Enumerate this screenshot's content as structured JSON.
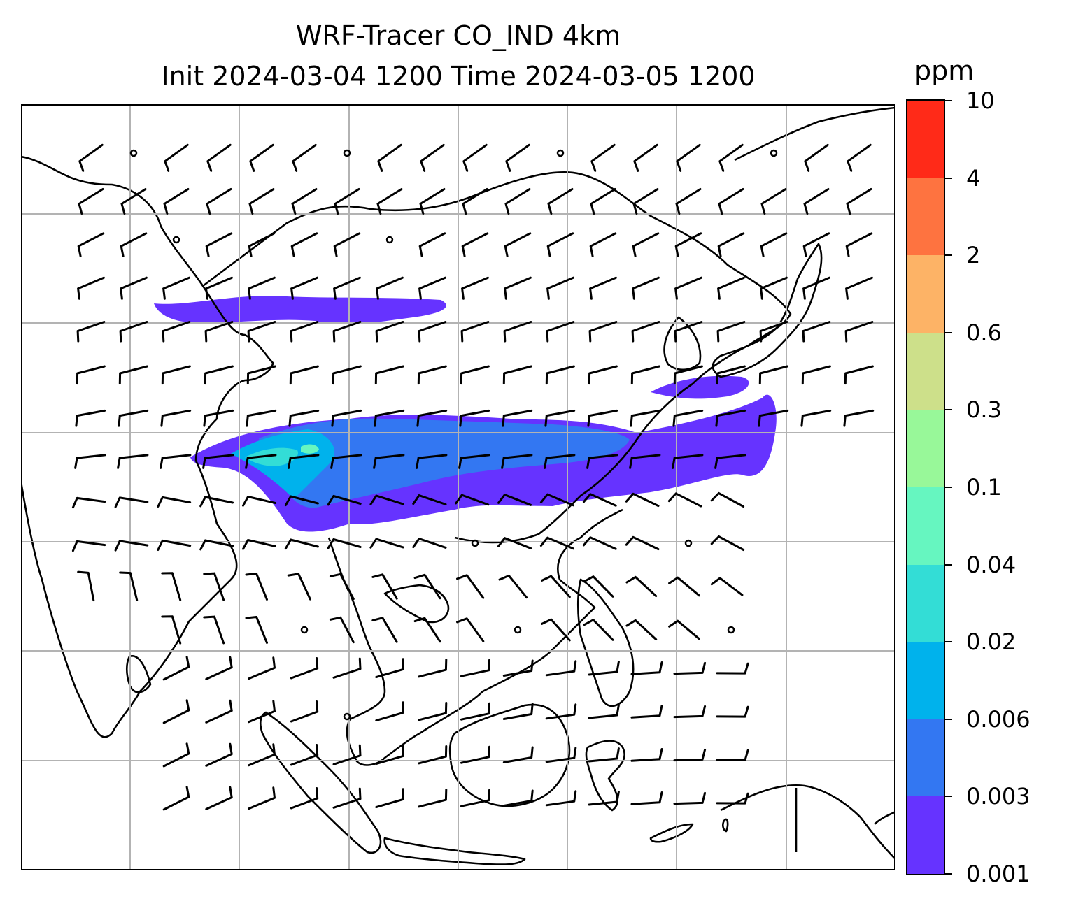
{
  "figure": {
    "title_line1": "WRF-Tracer CO_IND 4km",
    "title_line2": "Init 2024-03-04 1200 Time 2024-03-05 1200"
  },
  "colorbar": {
    "unit": "ppm",
    "levels": [
      "0.001",
      "0.003",
      "0.006",
      "0.02",
      "0.04",
      "0.1",
      "0.3",
      "0.6",
      "2",
      "4",
      "10"
    ],
    "colors": [
      "#6633ff",
      "#3377f2",
      "#00b2ec",
      "#33ddd6",
      "#66f6c0",
      "#98f899",
      "#cde08a",
      "#fdb366",
      "#fe7340",
      "#ff2a18"
    ]
  },
  "map": {
    "gridline_color": "#b3b3b3",
    "coastline_color": "#000000",
    "barb_color": "#000000"
  }
}
